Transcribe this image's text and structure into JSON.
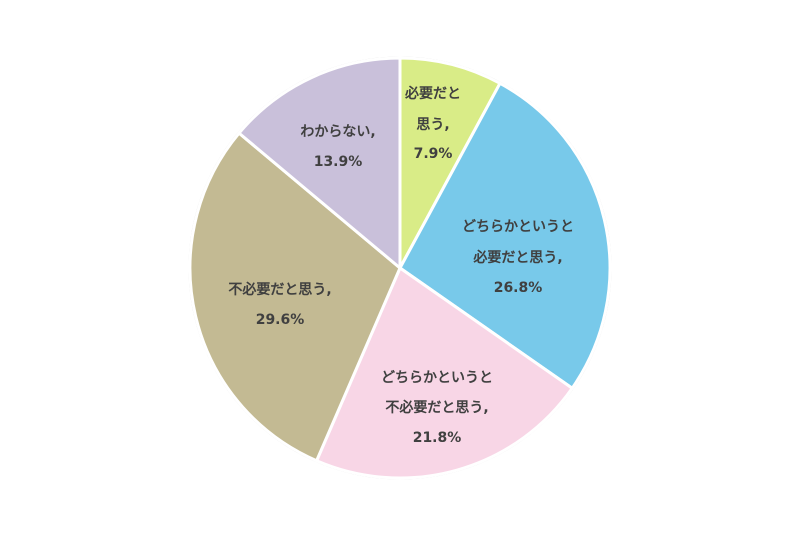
{
  "chart_data": {
    "type": "pie",
    "title": "",
    "start_angle": "12 o'clock",
    "direction": "clockwise",
    "slices": [
      {
        "label": "必要だと思う",
        "value": 7.9,
        "display": "7.9%",
        "color": "#D9EC87"
      },
      {
        "label": "どちらかというと必要だと思う",
        "value": 26.8,
        "display": "26.8%",
        "color": "#78C9EA"
      },
      {
        "label": "どちらかというと不必要だと思う",
        "value": 21.8,
        "display": "21.8%",
        "color": "#F8D6E6"
      },
      {
        "label": "不必要だと思う",
        "value": 29.6,
        "display": "29.6%",
        "color": "#C3BA93"
      },
      {
        "label": "わからない",
        "value": 13.9,
        "display": "13.9%",
        "color": "#C9C0DA"
      }
    ],
    "legend": "none",
    "data_labels": "inside, category and percentage"
  }
}
